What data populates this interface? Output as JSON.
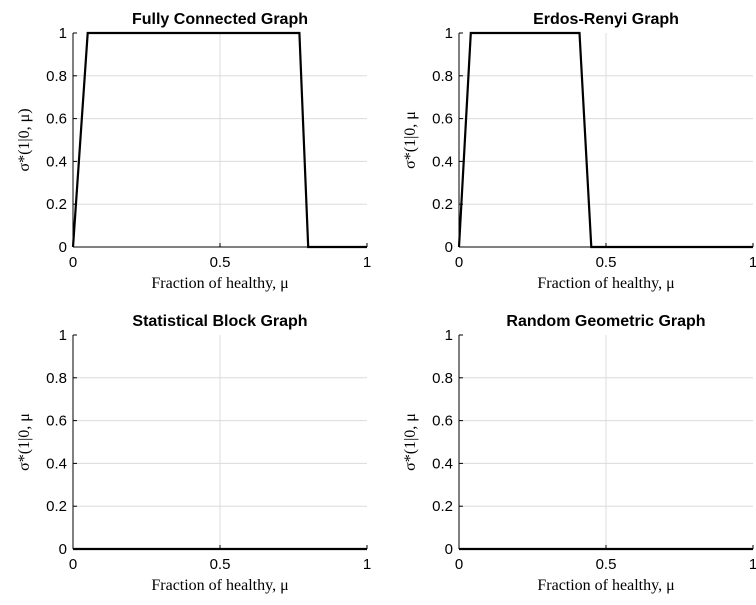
{
  "chart_data": [
    {
      "type": "line",
      "title": "Fully Connected Graph",
      "xlabel": "Fraction of healthy, μ",
      "ylabel": "σ*(1|0, μ)",
      "xlim": [
        0,
        1
      ],
      "ylim": [
        0,
        1
      ],
      "xticks": [
        0,
        0.5,
        1
      ],
      "xtick_labels": [
        "0",
        "0.5",
        "1"
      ],
      "yticks": [
        0,
        0.2,
        0.4,
        0.6,
        0.8,
        1
      ],
      "ytick_labels": [
        "0",
        "0.2",
        "0.4",
        "0.6",
        "0.8",
        "1"
      ],
      "grid": true,
      "series": [
        {
          "x": [
            0,
            0.05,
            0.77,
            0.8,
            1
          ],
          "y": [
            0,
            1,
            1,
            0,
            0
          ],
          "color": "#000000"
        }
      ]
    },
    {
      "type": "line",
      "title": "Erdos-Renyi Graph",
      "xlabel": "Fraction of healthy, μ",
      "ylabel": "σ*(1|0, μ",
      "xlim": [
        0,
        1
      ],
      "ylim": [
        0,
        1
      ],
      "xticks": [
        0,
        0.5,
        1
      ],
      "xtick_labels": [
        "0",
        "0.5",
        "1"
      ],
      "yticks": [
        0,
        0.2,
        0.4,
        0.6,
        0.8,
        1
      ],
      "ytick_labels": [
        "0",
        "0.2",
        "0.4",
        "0.6",
        "0.8",
        "1"
      ],
      "grid": true,
      "series": [
        {
          "x": [
            0,
            0.04,
            0.41,
            0.45,
            1
          ],
          "y": [
            0,
            1,
            1,
            0,
            0
          ],
          "color": "#000000"
        }
      ]
    },
    {
      "type": "line",
      "title": "Statistical Block Graph",
      "xlabel": "Fraction of healthy, μ",
      "ylabel": "σ*(1|0, μ",
      "xlim": [
        0,
        1
      ],
      "ylim": [
        0,
        1
      ],
      "xticks": [
        0,
        0.5,
        1
      ],
      "xtick_labels": [
        "0",
        "0.5",
        "1"
      ],
      "yticks": [
        0,
        0.2,
        0.4,
        0.6,
        0.8,
        1
      ],
      "ytick_labels": [
        "0",
        "0.2",
        "0.4",
        "0.6",
        "0.8",
        "1"
      ],
      "grid": true,
      "series": [
        {
          "x": [
            0,
            1
          ],
          "y": [
            0,
            0
          ],
          "color": "#000000"
        }
      ]
    },
    {
      "type": "line",
      "title": "Random Geometric Graph",
      "xlabel": "Fraction of healthy, μ",
      "ylabel": "σ*(1|0, μ",
      "xlim": [
        0,
        1
      ],
      "ylim": [
        0,
        1
      ],
      "xticks": [
        0,
        0.5,
        1
      ],
      "xtick_labels": [
        "0",
        "0.5",
        "1"
      ],
      "yticks": [
        0,
        0.2,
        0.4,
        0.6,
        0.8,
        1
      ],
      "ytick_labels": [
        "0",
        "0.2",
        "0.4",
        "0.6",
        "0.8",
        "1"
      ],
      "grid": true,
      "series": [
        {
          "x": [
            0,
            1
          ],
          "y": [
            0,
            0
          ],
          "color": "#000000"
        }
      ]
    }
  ]
}
